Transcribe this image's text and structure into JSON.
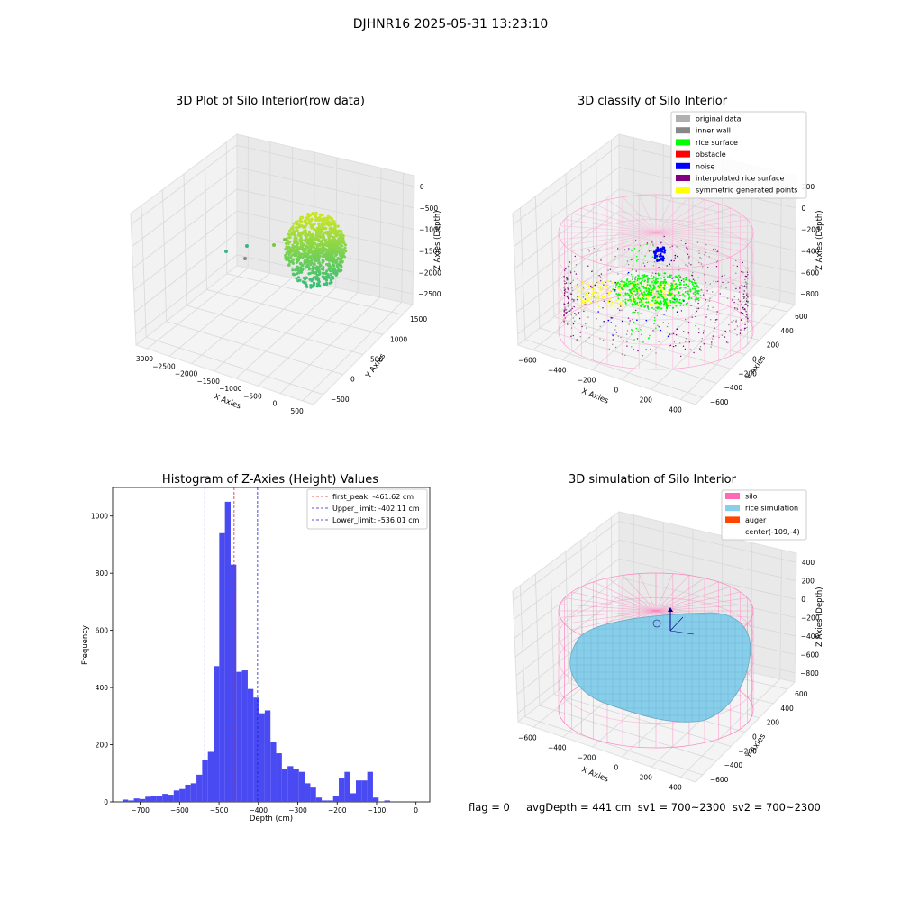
{
  "suptitle": "DJHNR16 2025-05-31 13:23:10",
  "footer": {
    "text": "flag = 0     avgDepth = 441 cm  sv1 = 700~2300  sv2 = 700~2300"
  },
  "colors": {
    "bar": "#4a4af2",
    "first_peak_line": "#d62728",
    "limit_lines": "#1f1fd6",
    "pane": "#f2f2f2",
    "grid": "#d8d8d8",
    "silo": "#ff69b4",
    "rice_simulation": "#87ceeb",
    "auger": "#ff4500",
    "original_data": "#b0b0b0",
    "inner_wall": "#888888",
    "rice_surface": "#00ff00",
    "obstacle": "#ff0000",
    "noise": "#0000ff",
    "interpolated": "#800080",
    "symmetric": "#ffff00"
  },
  "chart_data": [
    {
      "type": "scatter",
      "projection": "3d",
      "title": "3D Plot of Silo Interior(row data)",
      "xlabel": "X Axies",
      "ylabel": "Y Axies",
      "zlabel": "Z Axies (Depth)",
      "x_ticks": [
        "−3000",
        "−2500",
        "−2000",
        "−1500",
        "−1000",
        "−500",
        "0",
        "500"
      ],
      "y_ticks": [
        "−500",
        "0",
        "500",
        "1000",
        "1500"
      ],
      "z_ticks": [
        "0",
        "−500",
        "−1000",
        "−1500",
        "−2000",
        "−2500"
      ],
      "xlim": [
        -3300,
        700
      ],
      "ylim": [
        -700,
        1700
      ],
      "zlim": [
        -2700,
        100
      ],
      "colormap": "viridis",
      "points_note": "dense bowl-shaped cloud of points colored by depth"
    },
    {
      "type": "scatter",
      "projection": "3d",
      "title": "3D classify of Silo Interior",
      "xlabel": "X Axies",
      "ylabel": "Y Axies",
      "zlabel": "Z Axies (Depth)",
      "x_ticks": [
        "−600",
        "−400",
        "−200",
        "0",
        "200",
        "400"
      ],
      "y_ticks": [
        "−600",
        "−400",
        "−200",
        "0",
        "200",
        "400",
        "600"
      ],
      "z_ticks": [
        "200",
        "0",
        "−200",
        "−400",
        "−600",
        "−800"
      ],
      "xlim": [
        -700,
        500
      ],
      "ylim": [
        -700,
        700
      ],
      "zlim": [
        -900,
        300
      ],
      "legend_location": "upper right",
      "legend": [
        {
          "label": "original data",
          "color": "#b0b0b0"
        },
        {
          "label": "inner wall",
          "color": "#888888"
        },
        {
          "label": "rice surface",
          "color": "#00ff00"
        },
        {
          "label": "obstacle",
          "color": "#ff0000"
        },
        {
          "label": "noise",
          "color": "#0000ff"
        },
        {
          "label": "interpolated rice surface",
          "color": "#800080"
        },
        {
          "label": "symmetric generated points",
          "color": "#ffff00"
        }
      ]
    },
    {
      "type": "bar",
      "subtype": "histogram",
      "title": "Histogram of Z-Axies (Height) Values",
      "xlabel": "Depth (cm)",
      "ylabel": "Frequency",
      "xlim": [
        -770,
        35
      ],
      "ylim": [
        0,
        1100
      ],
      "x_ticks": [
        -700,
        -600,
        -500,
        -400,
        -300,
        -200,
        -100,
        0
      ],
      "x_tick_labels": [
        "−700",
        "−600",
        "−500",
        "−400",
        "−300",
        "−200",
        "−100",
        "0"
      ],
      "y_ticks": [
        0,
        200,
        400,
        600,
        800,
        1000
      ],
      "y_tick_labels": [
        "0",
        "200",
        "400",
        "600",
        "800",
        "1000"
      ],
      "bin_start": -745,
      "bin_width": 14.45,
      "values": [
        8,
        5,
        12,
        10,
        18,
        20,
        22,
        28,
        25,
        40,
        45,
        60,
        65,
        95,
        145,
        175,
        475,
        940,
        1050,
        830,
        455,
        460,
        395,
        365,
        310,
        320,
        210,
        170,
        115,
        125,
        115,
        105,
        65,
        50,
        15,
        5,
        5,
        20,
        85,
        105,
        30,
        75,
        75,
        105,
        15,
        0,
        5
      ],
      "legend_location": "upper right",
      "lines": [
        {
          "label": "first_peak: -461.62 cm",
          "x": -461.62,
          "color": "#d62728"
        },
        {
          "label": "Upper_limit: -402.11 cm",
          "x": -402.11,
          "color": "#1f1fd6"
        },
        {
          "label": "Lower_limit: -536.01 cm",
          "x": -536.01,
          "color": "#1f1fd6"
        }
      ]
    },
    {
      "type": "scatter",
      "projection": "3d",
      "title": "3D simulation of Silo Interior",
      "xlabel": "X Axies",
      "ylabel": "Y Axies",
      "zlabel": "Z Axies (Depth)",
      "x_ticks": [
        "−600",
        "−400",
        "−200",
        "0",
        "200",
        "400"
      ],
      "y_ticks": [
        "−600",
        "−400",
        "−200",
        "0",
        "200",
        "400",
        "600"
      ],
      "z_ticks": [
        "400",
        "200",
        "0",
        "−200",
        "−400",
        "−600",
        "−800"
      ],
      "xlim": [
        -700,
        500
      ],
      "ylim": [
        -700,
        700
      ],
      "zlim": [
        -900,
        500
      ],
      "legend_location": "upper right",
      "legend": [
        {
          "label": "silo",
          "color": "#ff69b4"
        },
        {
          "label": "rice simulation",
          "color": "#87ceeb"
        },
        {
          "label": "auger",
          "color": "#ff4500"
        },
        {
          "label": "center(-109,-4)",
          "color": ""
        }
      ]
    }
  ]
}
